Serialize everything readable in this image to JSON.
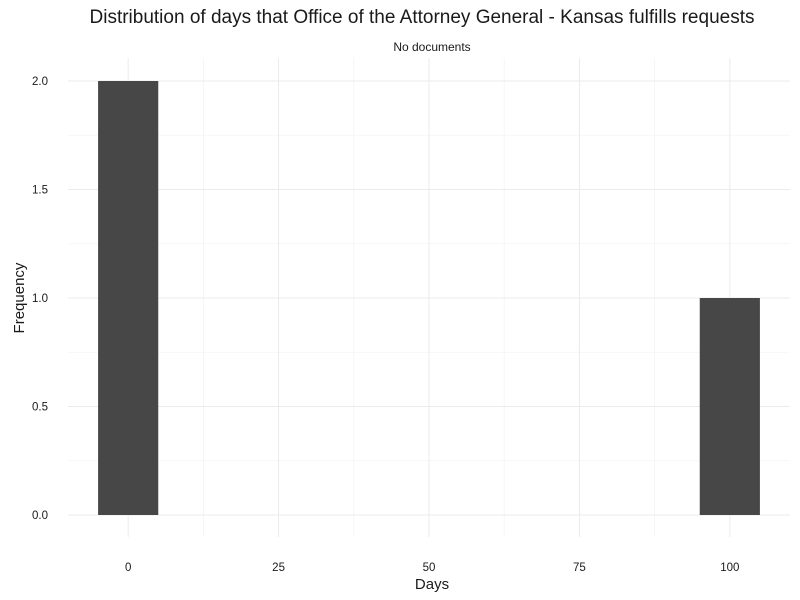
{
  "chart_data": {
    "type": "bar",
    "title": "Distribution of days that Office of the Attorney General - Kansas fulfills requests",
    "subtitle": "No documents",
    "xlabel": "Days",
    "ylabel": "Frequency",
    "x_ticks": [
      "0",
      "25",
      "50",
      "75",
      "100"
    ],
    "y_ticks": [
      "0.0",
      "0.5",
      "1.0",
      "1.5",
      "2.0"
    ],
    "xlim": [
      -10,
      110
    ],
    "ylim": [
      0,
      2
    ],
    "bins": [
      {
        "x_start": -5,
        "x_end": 5,
        "value": 2
      },
      {
        "x_start": 95,
        "x_end": 105,
        "value": 1
      }
    ],
    "grid": true,
    "bar_color": "#474747"
  }
}
